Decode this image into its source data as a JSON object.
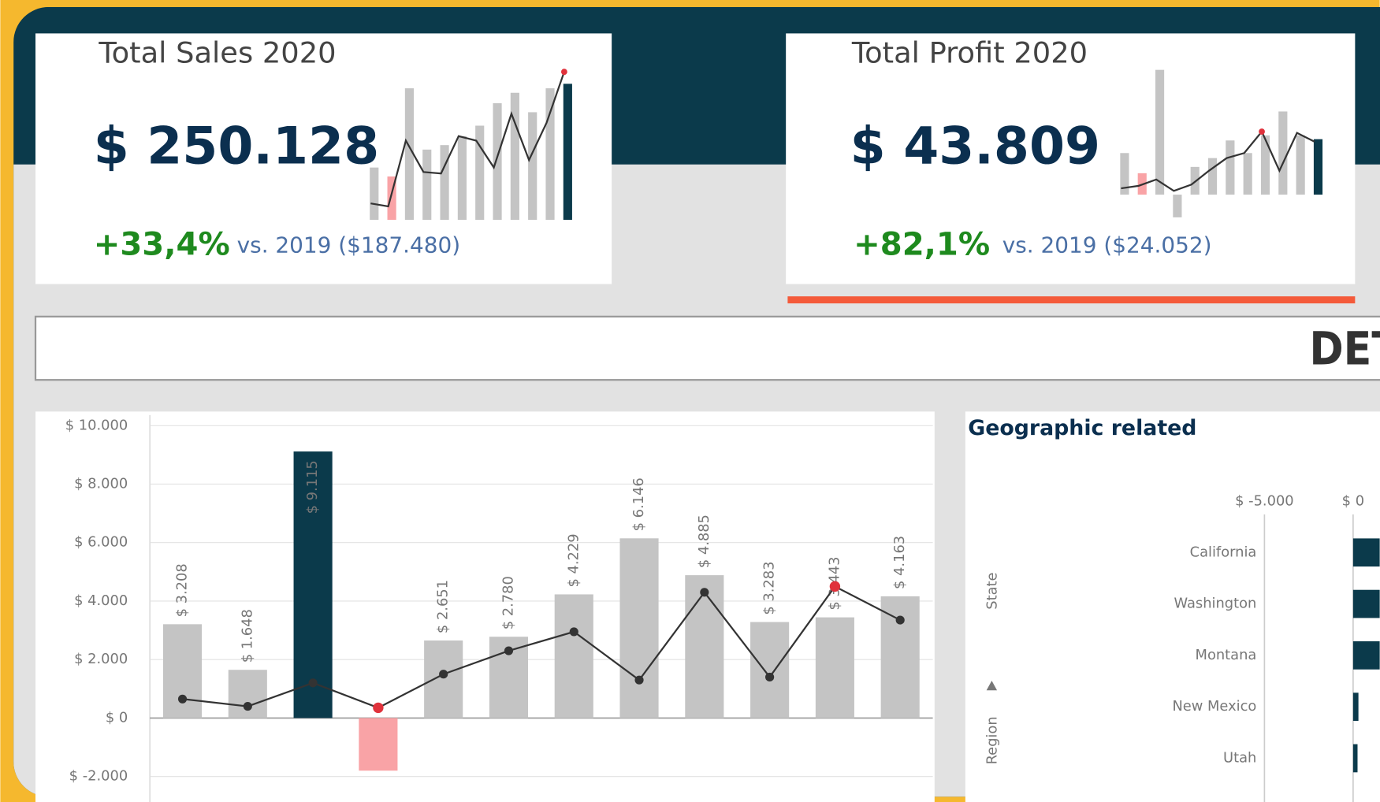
{
  "kpis": [
    {
      "title": "Total Sales 2020",
      "value": "$ 250.128",
      "change": "+33,4%",
      "comparison": "vs. 2019 ($187.480)",
      "sparkline": {
        "ylim": [
          0,
          100
        ],
        "bars": [
          35,
          29,
          88,
          47,
          50,
          56,
          63,
          78,
          85,
          72,
          88,
          91
        ],
        "bar_colors": [
          "#c4c4c4",
          "#f9a3a6",
          "#c4c4c4",
          "#c4c4c4",
          "#c4c4c4",
          "#c4c4c4",
          "#c4c4c4",
          "#c4c4c4",
          "#c4c4c4",
          "#c4c4c4",
          "#c4c4c4",
          "#0b3a4b"
        ],
        "line": [
          11,
          9,
          53,
          32,
          31,
          56,
          53,
          35,
          71,
          40,
          65,
          99
        ],
        "line_color": "#333333",
        "highlight_color": "#e0323c"
      }
    },
    {
      "title": "Total Profit 2020",
      "value": "$ 43.809",
      "change": "+82,1%",
      "comparison": "vs. 2019 ($24.052)",
      "sparkline": {
        "ylim": [
          -20,
          100
        ],
        "bars": [
          33,
          17,
          99,
          -18,
          22,
          29,
          43,
          33,
          47,
          66,
          47,
          44
        ],
        "bar_colors": [
          "#c4c4c4",
          "#f9a3a6",
          "#c4c4c4",
          "#c4c4c4",
          "#c4c4c4",
          "#c4c4c4",
          "#c4c4c4",
          "#c4c4c4",
          "#c4c4c4",
          "#c4c4c4",
          "#c4c4c4",
          "#0b3a4b"
        ],
        "line": [
          5,
          7,
          12,
          3,
          8,
          19,
          29,
          33,
          50,
          19,
          49,
          42
        ],
        "line_color": "#333333",
        "highlight_color": "#e0323c"
      }
    }
  ],
  "banner": {
    "title": "DETA"
  },
  "chart_data": [
    {
      "type": "bar_line",
      "ylim": [
        -2000,
        10000
      ],
      "yticks": [
        {
          "value": -2000,
          "label": "$ -2.000"
        },
        {
          "value": 0,
          "label": "$ 0"
        },
        {
          "value": 2000,
          "label": "$ 2.000"
        },
        {
          "value": 4000,
          "label": "$ 4.000"
        },
        {
          "value": 6000,
          "label": "$ 6.000"
        },
        {
          "value": 8000,
          "label": "$ 8.000"
        },
        {
          "value": 10000,
          "label": "$ 10.000"
        }
      ],
      "grid": true,
      "series": [
        {
          "type": "bar",
          "values": [
            3208,
            1648,
            9115,
            -1800,
            2651,
            2780,
            4229,
            6146,
            4885,
            3283,
            3443,
            4163
          ],
          "value_labels": [
            "$ 3.208",
            "$ 1.648",
            "$ 9.115",
            null,
            "$ 2.651",
            "$ 2.780",
            "$ 4.229",
            "$ 6.146",
            "$ 4.885",
            "$ 3.283",
            "$ 3.443",
            "$ 4.163"
          ],
          "colors": [
            "#c4c4c4",
            "#c4c4c4",
            "#0b3a4b",
            "#f9a3a6",
            "#c4c4c4",
            "#c4c4c4",
            "#c4c4c4",
            "#c4c4c4",
            "#c4c4c4",
            "#c4c4c4",
            "#c4c4c4",
            "#c4c4c4"
          ]
        },
        {
          "type": "line",
          "values": [
            650,
            400,
            1200,
            350,
            1500,
            2300,
            2950,
            1300,
            4300,
            1400,
            4500,
            3350
          ],
          "color": "#333333",
          "highlight_color": "#e0323c"
        }
      ]
    },
    {
      "type": "hbar",
      "title": "Geographic related",
      "categories": [
        "California",
        "Washington",
        "Montana",
        "New Mexico",
        "Utah"
      ],
      "values": [
        1500,
        1500,
        1500,
        300,
        250
      ],
      "color": "#0b3a4b",
      "xlim": [
        -5000,
        1500
      ],
      "xticks": [
        {
          "value": -5000,
          "label": "$ -5.000"
        },
        {
          "value": 0,
          "label": "$ 0"
        }
      ],
      "axis_labels": [
        "State",
        "Region"
      ]
    }
  ]
}
